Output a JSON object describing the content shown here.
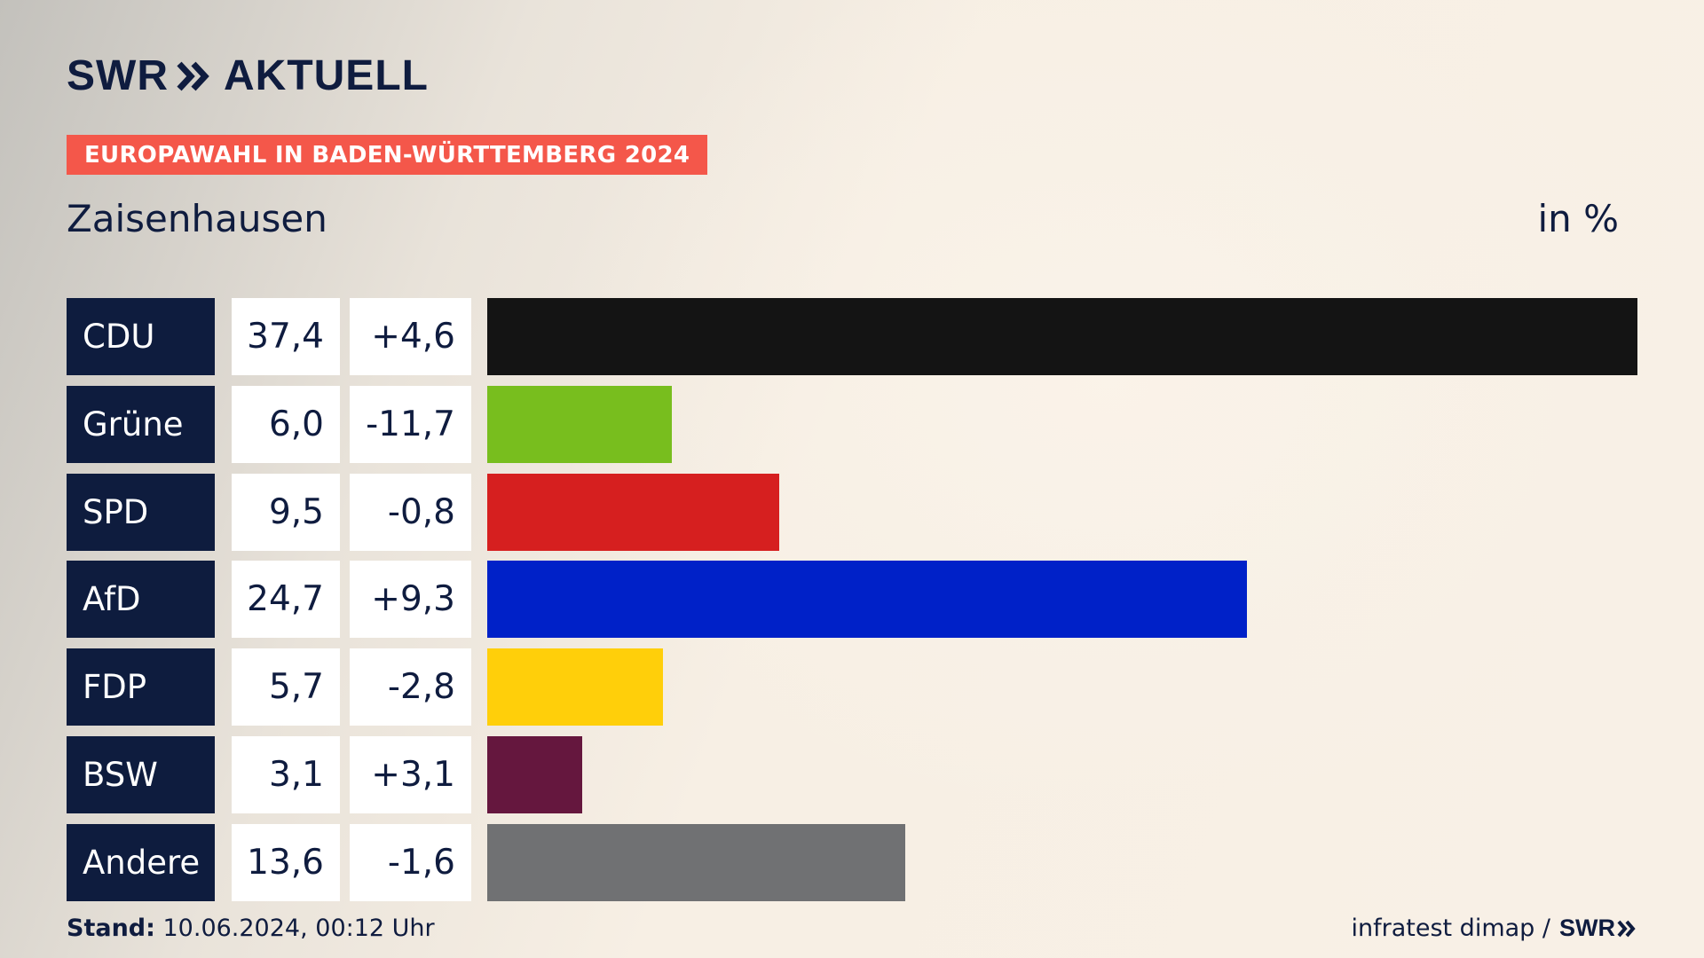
{
  "header": {
    "logo_text": "SWR",
    "logo_product": "AKTUELL",
    "tag": "EUROPAWAHL IN BADEN-WÜRTTEMBERG 2024",
    "region": "Zaisenhausen",
    "unit": "in %"
  },
  "colors": {
    "navy": "#0e1c3e",
    "tag_red": "#f4574a"
  },
  "chart_data": {
    "type": "bar",
    "orientation": "horizontal",
    "categories": [
      "CDU",
      "Grüne",
      "SPD",
      "AfD",
      "FDP",
      "BSW",
      "Andere"
    ],
    "values": [
      37.4,
      6.0,
      9.5,
      24.7,
      5.7,
      3.1,
      13.6
    ],
    "value_labels": [
      "37,4",
      "6,0",
      "9,5",
      "24,7",
      "5,7",
      "3,1",
      "13,6"
    ],
    "changes": [
      4.6,
      -11.7,
      -0.8,
      9.3,
      -2.8,
      3.1,
      -1.6
    ],
    "change_labels": [
      "+4,6",
      "-11,7",
      "-0,8",
      "+9,3",
      "-2,8",
      "+3,1",
      "-1,6"
    ],
    "bar_colors": [
      "#141414",
      "#78be1e",
      "#d61f1f",
      "#0021c8",
      "#ffcf0a",
      "#65173e",
      "#707173"
    ],
    "title": "Zaisenhausen",
    "xlabel": "",
    "ylabel": "in %",
    "xlim": [
      0,
      37.4
    ],
    "grid": false,
    "legend": "none"
  },
  "footer": {
    "stand_label": "Stand:",
    "stand_value": " 10.06.2024, 00:12 Uhr",
    "source": "infratest dimap /",
    "source_brand": "SWR"
  }
}
